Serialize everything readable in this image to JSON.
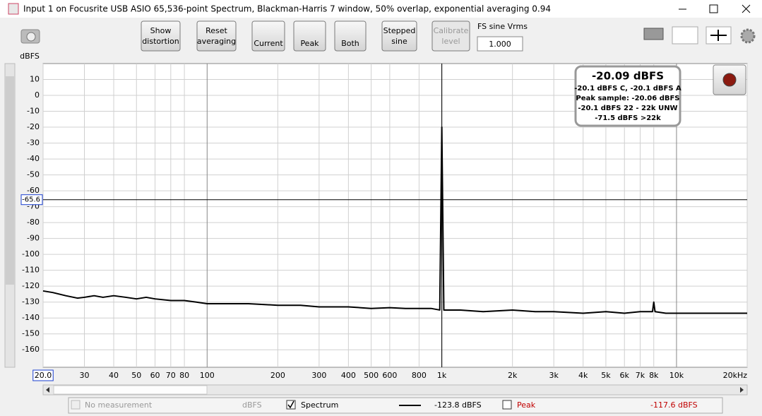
{
  "window": {
    "title": "Input 1 on Focusrite USB ASIO 65,536-point Spectrum, Blackman-Harris 7 window, 50% overlap, exponential averaging 0.94"
  },
  "toolbar": {
    "buttons": [
      {
        "label": [
          "Show",
          "distortion"
        ]
      },
      {
        "label": [
          "Reset",
          "averaging"
        ]
      },
      {
        "label": [
          "Current"
        ]
      },
      {
        "label": [
          "Peak"
        ]
      },
      {
        "label": [
          "Both"
        ]
      },
      {
        "label": [
          "Stepped",
          "sine"
        ]
      },
      {
        "label": [
          "Calibrate",
          "level"
        ],
        "disabled": true
      }
    ],
    "fs_label": "FS sine Vrms",
    "fs_value": "1.000"
  },
  "chart_data": {
    "type": "line",
    "y_label": "dBFS",
    "xscale": "log",
    "xlim": [
      20,
      20000
    ],
    "ylim": [
      -171,
      20
    ],
    "grid": true,
    "yticks": [
      10,
      0,
      -10,
      -20,
      -30,
      -40,
      -50,
      -60,
      -70,
      -80,
      -90,
      -100,
      -110,
      -120,
      -130,
      -140,
      -150,
      -160
    ],
    "xticks": [
      {
        "value": 20,
        "label": "20.0"
      },
      30,
      40,
      50,
      60,
      70,
      80,
      100,
      200,
      300,
      400,
      500,
      600,
      800,
      {
        "value": 1000,
        "label": "1k"
      },
      {
        "value": 2000,
        "label": "2k"
      },
      {
        "value": 3000,
        "label": "3k"
      },
      {
        "value": 4000,
        "label": "4k"
      },
      {
        "value": 5000,
        "label": "5k"
      },
      {
        "value": 6000,
        "label": "6k"
      },
      {
        "value": 7000,
        "label": "7k"
      },
      {
        "value": 8000,
        "label": "8k"
      },
      {
        "value": 10000,
        "label": "10k"
      },
      {
        "value": 20000,
        "label": "20kHz"
      }
    ],
    "cursor": {
      "x": 1000,
      "y": -65.6
    },
    "x": [
      20,
      22,
      25,
      28,
      30,
      33,
      36,
      40,
      45,
      50,
      55,
      60,
      70,
      80,
      90,
      100,
      120,
      150,
      200,
      250,
      300,
      400,
      500,
      600,
      700,
      800,
      900,
      980,
      1000,
      1020,
      1200,
      1500,
      2000,
      2500,
      3000,
      4000,
      5000,
      6000,
      7000,
      7900,
      8000,
      8100,
      9000,
      10000,
      12000,
      15000,
      20000
    ],
    "series": [
      {
        "name": "Spectrum",
        "color": "#000000",
        "values": [
          -123,
          -124,
          -126,
          -127.5,
          -127,
          -126,
          -127,
          -126,
          -127,
          -128,
          -127,
          -128,
          -129,
          -129,
          -130,
          -131,
          -131,
          -131,
          -132,
          -132,
          -133,
          -133,
          -134,
          -133.5,
          -134,
          -134,
          -134,
          -135,
          -20,
          -135,
          -135,
          -136,
          -135,
          -136,
          -136,
          -137,
          -136,
          -137,
          -136,
          -136,
          -130,
          -136,
          -137,
          -137,
          -137,
          -137,
          -137
        ]
      }
    ]
  },
  "info_box": {
    "headline": "-20.09 dBFS",
    "lines": [
      "-20.1 dBFS C, -20.1 dBFS A",
      "Peak sample: -20.06 dBFS",
      "-20.1 dBFS 22 - 22k UNW",
      "-71.5 dBFS >22k"
    ]
  },
  "legend_bar": {
    "no_measurement": {
      "name": "No measurement",
      "reading": "dBFS"
    },
    "spectrum": {
      "reading": "-123.8 dBFS"
    },
    "peak": {
      "name": "Peak",
      "reading": "-117.6 dBFS"
    }
  }
}
